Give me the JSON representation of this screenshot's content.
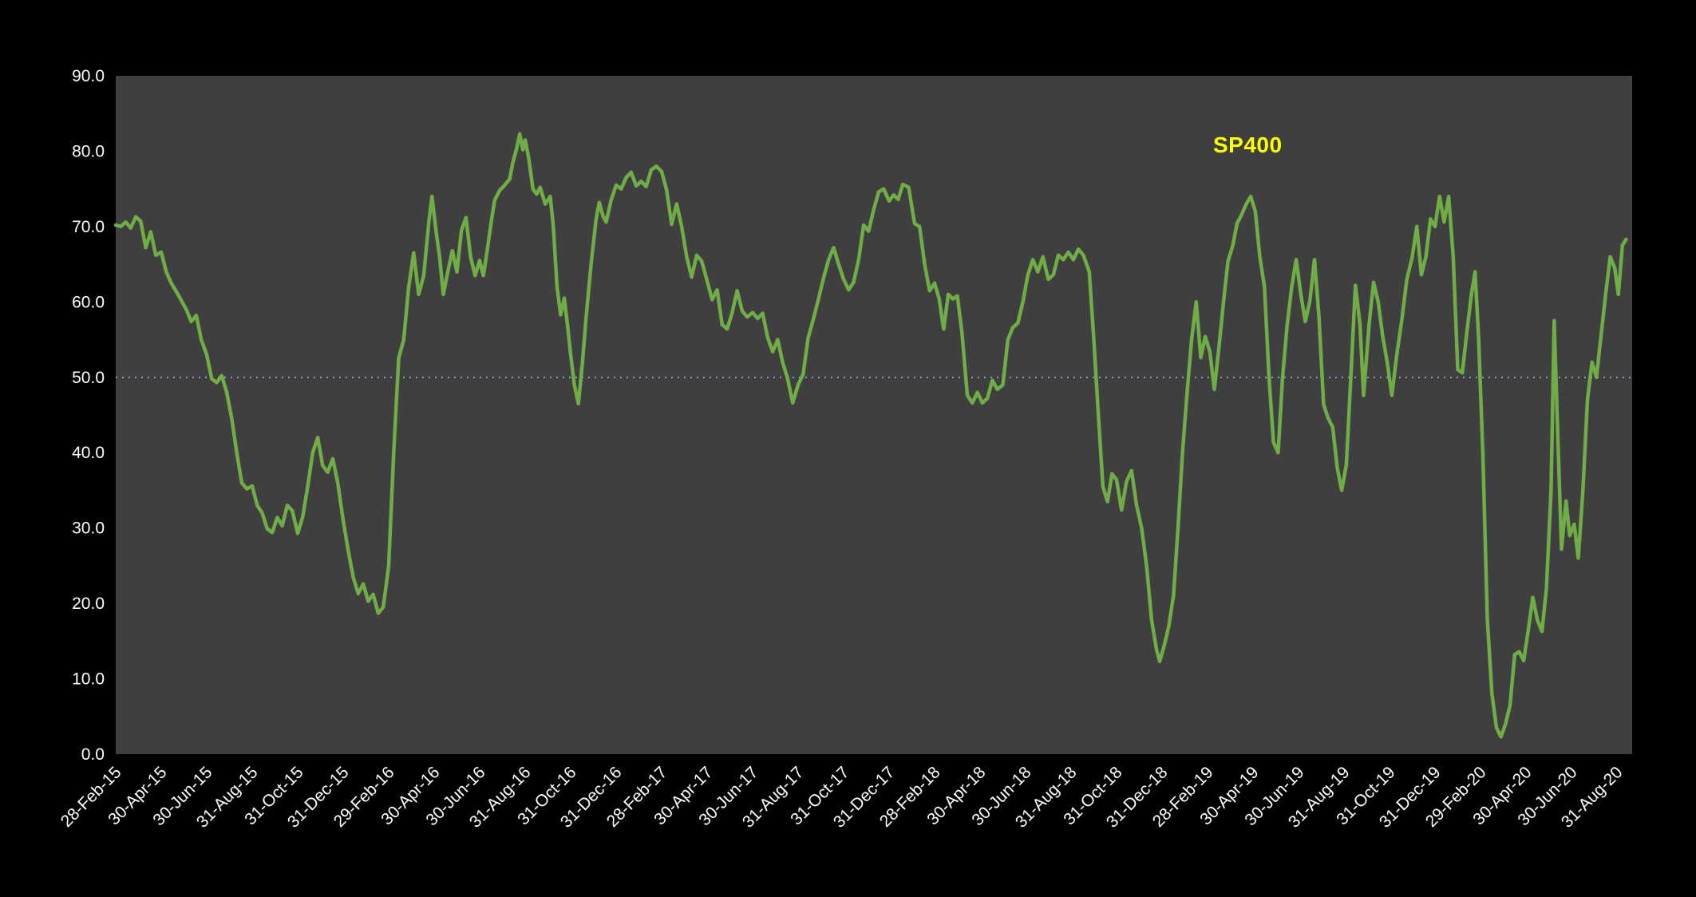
{
  "chart_data": {
    "type": "line",
    "series_label": "SP400",
    "background": "#000000",
    "plot_background": "#3F3F3F",
    "text_color": "#FFFFFF",
    "series_color": "#70AD47",
    "annotation": {
      "text": "SP400",
      "color": "#FFFF00"
    },
    "reference_line": {
      "value": 50,
      "color": "#8FAADC",
      "style": "dotted"
    },
    "ylim": [
      0,
      90
    ],
    "grid": "off-except-50-reference",
    "legend_position": "inline-annotation-top-right-area",
    "x_unit": "tick-index (one unit = 2 months between labeled ticks)",
    "y_ticks": {
      "values": [
        0,
        10,
        20,
        30,
        40,
        50,
        60,
        70,
        80,
        90
      ],
      "labels": [
        "0.0",
        "10.0",
        "20.0",
        "30.0",
        "40.0",
        "50.0",
        "60.0",
        "70.0",
        "80.0",
        "90.0"
      ]
    },
    "x_tick_labels": [
      "28-Feb-15",
      "30-Apr-15",
      "30-Jun-15",
      "31-Aug-15",
      "31-Oct-15",
      "31-Dec-15",
      "29-Feb-16",
      "30-Apr-16",
      "30-Jun-16",
      "31-Aug-16",
      "31-Oct-16",
      "31-Dec-16",
      "28-Feb-17",
      "30-Apr-17",
      "30-Jun-17",
      "31-Aug-17",
      "31-Oct-17",
      "31-Dec-17",
      "28-Feb-18",
      "30-Apr-18",
      "30-Jun-18",
      "31-Aug-18",
      "31-Oct-18",
      "31-Dec-18",
      "28-Feb-19",
      "30-Apr-19",
      "30-Jun-19",
      "31-Aug-19",
      "31-Oct-19",
      "31-Dec-19",
      "29-Feb-20",
      "30-Apr-20",
      "30-Jun-20",
      "31-Aug-20"
    ],
    "points": [
      [
        0.0,
        70.2
      ],
      [
        0.11,
        70.0
      ],
      [
        0.22,
        70.6
      ],
      [
        0.33,
        69.8
      ],
      [
        0.44,
        71.3
      ],
      [
        0.55,
        70.7
      ],
      [
        0.66,
        67.2
      ],
      [
        0.77,
        69.3
      ],
      [
        0.88,
        66.2
      ],
      [
        1.0,
        66.6
      ],
      [
        1.11,
        64.0
      ],
      [
        1.22,
        62.5
      ],
      [
        1.33,
        61.4
      ],
      [
        1.44,
        60.2
      ],
      [
        1.55,
        59.0
      ],
      [
        1.66,
        57.4
      ],
      [
        1.77,
        58.2
      ],
      [
        1.88,
        55.0
      ],
      [
        2.0,
        53.0
      ],
      [
        2.11,
        49.8
      ],
      [
        2.22,
        49.3
      ],
      [
        2.33,
        50.2
      ],
      [
        2.44,
        48.0
      ],
      [
        2.55,
        44.5
      ],
      [
        2.66,
        40.0
      ],
      [
        2.77,
        36.0
      ],
      [
        2.88,
        35.2
      ],
      [
        3.0,
        35.6
      ],
      [
        3.11,
        33.0
      ],
      [
        3.22,
        32.0
      ],
      [
        3.33,
        29.9
      ],
      [
        3.44,
        29.4
      ],
      [
        3.55,
        31.4
      ],
      [
        3.66,
        30.3
      ],
      [
        3.77,
        33.0
      ],
      [
        3.88,
        32.3
      ],
      [
        4.0,
        29.3
      ],
      [
        4.11,
        31.5
      ],
      [
        4.22,
        35.5
      ],
      [
        4.33,
        40.0
      ],
      [
        4.44,
        42.0
      ],
      [
        4.55,
        38.3
      ],
      [
        4.66,
        37.4
      ],
      [
        4.77,
        39.2
      ],
      [
        4.88,
        36.0
      ],
      [
        5.0,
        31.0
      ],
      [
        5.11,
        27.0
      ],
      [
        5.22,
        23.5
      ],
      [
        5.33,
        21.3
      ],
      [
        5.44,
        22.6
      ],
      [
        5.55,
        20.3
      ],
      [
        5.66,
        21.2
      ],
      [
        5.77,
        18.7
      ],
      [
        5.88,
        19.5
      ],
      [
        6.0,
        25.0
      ],
      [
        6.11,
        40.0
      ],
      [
        6.22,
        52.5
      ],
      [
        6.33,
        55.0
      ],
      [
        6.44,
        62.0
      ],
      [
        6.55,
        66.5
      ],
      [
        6.66,
        61.0
      ],
      [
        6.77,
        63.5
      ],
      [
        6.88,
        70.5
      ],
      [
        6.95,
        74.0
      ],
      [
        7.05,
        69.0
      ],
      [
        7.12,
        66.0
      ],
      [
        7.2,
        61.0
      ],
      [
        7.3,
        64.0
      ],
      [
        7.4,
        66.8
      ],
      [
        7.5,
        64.0
      ],
      [
        7.6,
        69.5
      ],
      [
        7.7,
        71.2
      ],
      [
        7.8,
        66.0
      ],
      [
        7.9,
        63.5
      ],
      [
        8.0,
        65.5
      ],
      [
        8.08,
        63.5
      ],
      [
        8.17,
        67.0
      ],
      [
        8.25,
        70.5
      ],
      [
        8.33,
        73.5
      ],
      [
        8.44,
        74.8
      ],
      [
        8.55,
        75.5
      ],
      [
        8.66,
        76.3
      ],
      [
        8.73,
        78.5
      ],
      [
        8.81,
        80.3
      ],
      [
        8.88,
        82.3
      ],
      [
        8.95,
        80.2
      ],
      [
        9.0,
        81.5
      ],
      [
        9.08,
        79.0
      ],
      [
        9.17,
        75.0
      ],
      [
        9.25,
        74.3
      ],
      [
        9.33,
        75.2
      ],
      [
        9.44,
        73.0
      ],
      [
        9.55,
        74.0
      ],
      [
        9.62,
        70.0
      ],
      [
        9.7,
        62.0
      ],
      [
        9.78,
        58.3
      ],
      [
        9.86,
        60.5
      ],
      [
        9.93,
        57.0
      ],
      [
        10.0,
        53.0
      ],
      [
        10.08,
        49.0
      ],
      [
        10.17,
        46.5
      ],
      [
        10.26,
        52.0
      ],
      [
        10.34,
        58.0
      ],
      [
        10.45,
        65.0
      ],
      [
        10.56,
        71.0
      ],
      [
        10.63,
        73.2
      ],
      [
        10.71,
        71.4
      ],
      [
        10.78,
        70.6
      ],
      [
        10.89,
        73.5
      ],
      [
        11.0,
        75.5
      ],
      [
        11.11,
        75.0
      ],
      [
        11.22,
        76.5
      ],
      [
        11.33,
        77.2
      ],
      [
        11.44,
        75.4
      ],
      [
        11.55,
        76.0
      ],
      [
        11.66,
        75.3
      ],
      [
        11.77,
        77.5
      ],
      [
        11.88,
        78.0
      ],
      [
        12.0,
        77.3
      ],
      [
        12.11,
        74.8
      ],
      [
        12.22,
        70.3
      ],
      [
        12.33,
        73.0
      ],
      [
        12.44,
        70.0
      ],
      [
        12.55,
        66.0
      ],
      [
        12.66,
        63.3
      ],
      [
        12.77,
        66.2
      ],
      [
        12.88,
        65.4
      ],
      [
        13.0,
        62.8
      ],
      [
        13.11,
        60.3
      ],
      [
        13.22,
        61.6
      ],
      [
        13.33,
        57.0
      ],
      [
        13.44,
        56.4
      ],
      [
        13.55,
        58.6
      ],
      [
        13.66,
        61.5
      ],
      [
        13.77,
        58.8
      ],
      [
        13.88,
        58.0
      ],
      [
        14.0,
        58.6
      ],
      [
        14.11,
        57.8
      ],
      [
        14.22,
        58.5
      ],
      [
        14.33,
        55.3
      ],
      [
        14.44,
        53.4
      ],
      [
        14.55,
        55.0
      ],
      [
        14.66,
        52.0
      ],
      [
        14.77,
        49.8
      ],
      [
        14.88,
        46.6
      ],
      [
        15.0,
        49.0
      ],
      [
        15.11,
        50.4
      ],
      [
        15.22,
        55.2
      ],
      [
        15.33,
        57.6
      ],
      [
        15.44,
        60.2
      ],
      [
        15.56,
        63.2
      ],
      [
        15.67,
        65.6
      ],
      [
        15.78,
        67.2
      ],
      [
        15.89,
        65.0
      ],
      [
        16.0,
        63.0
      ],
      [
        16.11,
        61.6
      ],
      [
        16.22,
        62.6
      ],
      [
        16.33,
        65.6
      ],
      [
        16.44,
        70.2
      ],
      [
        16.55,
        69.4
      ],
      [
        16.66,
        72.2
      ],
      [
        16.77,
        74.6
      ],
      [
        16.88,
        75.0
      ],
      [
        17.0,
        73.4
      ],
      [
        17.1,
        74.2
      ],
      [
        17.2,
        73.6
      ],
      [
        17.3,
        75.6
      ],
      [
        17.43,
        75.2
      ],
      [
        17.56,
        70.4
      ],
      [
        17.67,
        70.0
      ],
      [
        17.78,
        65.0
      ],
      [
        17.89,
        61.5
      ],
      [
        18.0,
        62.5
      ],
      [
        18.1,
        60.4
      ],
      [
        18.2,
        56.4
      ],
      [
        18.3,
        61.0
      ],
      [
        18.4,
        60.4
      ],
      [
        18.5,
        60.8
      ],
      [
        18.6,
        56.0
      ],
      [
        18.72,
        47.6
      ],
      [
        18.83,
        46.6
      ],
      [
        18.94,
        48.0
      ],
      [
        19.05,
        46.6
      ],
      [
        19.16,
        47.2
      ],
      [
        19.27,
        49.6
      ],
      [
        19.38,
        48.4
      ],
      [
        19.5,
        49.0
      ],
      [
        19.61,
        55.0
      ],
      [
        19.72,
        56.6
      ],
      [
        19.83,
        57.2
      ],
      [
        19.94,
        60.0
      ],
      [
        20.05,
        63.6
      ],
      [
        20.16,
        65.6
      ],
      [
        20.27,
        64.0
      ],
      [
        20.38,
        66.0
      ],
      [
        20.5,
        63.0
      ],
      [
        20.61,
        63.6
      ],
      [
        20.72,
        66.2
      ],
      [
        20.83,
        65.6
      ],
      [
        20.94,
        66.6
      ],
      [
        21.05,
        65.6
      ],
      [
        21.16,
        67.0
      ],
      [
        21.27,
        66.2
      ],
      [
        21.4,
        64.0
      ],
      [
        21.5,
        55.0
      ],
      [
        21.6,
        45.0
      ],
      [
        21.7,
        35.5
      ],
      [
        21.8,
        33.5
      ],
      [
        21.9,
        37.2
      ],
      [
        22.0,
        36.4
      ],
      [
        22.11,
        32.4
      ],
      [
        22.22,
        36.2
      ],
      [
        22.33,
        37.6
      ],
      [
        22.44,
        33.0
      ],
      [
        22.55,
        30.0
      ],
      [
        22.66,
        25.0
      ],
      [
        22.77,
        17.8
      ],
      [
        22.88,
        13.8
      ],
      [
        22.95,
        12.3
      ],
      [
        23.05,
        14.5
      ],
      [
        23.15,
        17.0
      ],
      [
        23.25,
        21.0
      ],
      [
        23.35,
        30.0
      ],
      [
        23.45,
        40.0
      ],
      [
        23.55,
        48.0
      ],
      [
        23.65,
        55.0
      ],
      [
        23.75,
        60.0
      ],
      [
        23.85,
        52.6
      ],
      [
        23.95,
        55.4
      ],
      [
        24.05,
        53.4
      ],
      [
        24.15,
        48.4
      ],
      [
        24.25,
        54.0
      ],
      [
        24.35,
        60.0
      ],
      [
        24.45,
        65.4
      ],
      [
        24.55,
        67.4
      ],
      [
        24.65,
        70.4
      ],
      [
        24.75,
        71.6
      ],
      [
        24.85,
        73.0
      ],
      [
        24.95,
        74.0
      ],
      [
        25.05,
        72.0
      ],
      [
        25.15,
        66.0
      ],
      [
        25.25,
        62.0
      ],
      [
        25.35,
        50.0
      ],
      [
        25.45,
        41.4
      ],
      [
        25.55,
        40.0
      ],
      [
        25.65,
        50.0
      ],
      [
        25.75,
        57.0
      ],
      [
        25.85,
        62.0
      ],
      [
        25.95,
        65.6
      ],
      [
        26.05,
        61.0
      ],
      [
        26.15,
        57.4
      ],
      [
        26.25,
        60.2
      ],
      [
        26.35,
        65.6
      ],
      [
        26.45,
        58.0
      ],
      [
        26.55,
        46.4
      ],
      [
        26.65,
        44.6
      ],
      [
        26.75,
        43.4
      ],
      [
        26.85,
        38.0
      ],
      [
        26.95,
        35.0
      ],
      [
        27.05,
        38.4
      ],
      [
        27.15,
        50.0
      ],
      [
        27.25,
        62.2
      ],
      [
        27.35,
        57.0
      ],
      [
        27.43,
        47.6
      ],
      [
        27.55,
        57.0
      ],
      [
        27.65,
        62.6
      ],
      [
        27.75,
        60.0
      ],
      [
        27.85,
        55.4
      ],
      [
        27.95,
        52.0
      ],
      [
        28.05,
        47.6
      ],
      [
        28.16,
        53.0
      ],
      [
        28.27,
        57.6
      ],
      [
        28.38,
        63.0
      ],
      [
        28.5,
        66.0
      ],
      [
        28.6,
        70.0
      ],
      [
        28.7,
        63.6
      ],
      [
        28.8,
        66.0
      ],
      [
        28.9,
        71.0
      ],
      [
        29.0,
        70.0
      ],
      [
        29.1,
        74.0
      ],
      [
        29.2,
        70.6
      ],
      [
        29.3,
        74.0
      ],
      [
        29.4,
        66.0
      ],
      [
        29.5,
        51.0
      ],
      [
        29.6,
        50.6
      ],
      [
        29.7,
        56.0
      ],
      [
        29.8,
        61.0
      ],
      [
        29.88,
        64.0
      ],
      [
        29.96,
        55.0
      ],
      [
        30.05,
        40.0
      ],
      [
        30.15,
        18.0
      ],
      [
        30.25,
        8.0
      ],
      [
        30.35,
        3.5
      ],
      [
        30.45,
        2.3
      ],
      [
        30.55,
        4.0
      ],
      [
        30.65,
        6.5
      ],
      [
        30.75,
        13.2
      ],
      [
        30.85,
        13.6
      ],
      [
        30.95,
        12.4
      ],
      [
        31.05,
        16.5
      ],
      [
        31.15,
        20.8
      ],
      [
        31.25,
        17.8
      ],
      [
        31.35,
        16.3
      ],
      [
        31.45,
        22.0
      ],
      [
        31.55,
        35.0
      ],
      [
        31.62,
        57.5
      ],
      [
        31.7,
        42.0
      ],
      [
        31.78,
        27.2
      ],
      [
        31.88,
        33.6
      ],
      [
        31.96,
        29.0
      ],
      [
        32.06,
        30.5
      ],
      [
        32.15,
        26.0
      ],
      [
        32.25,
        35.0
      ],
      [
        32.35,
        47.0
      ],
      [
        32.45,
        52.0
      ],
      [
        32.55,
        50.0
      ],
      [
        32.65,
        55.5
      ],
      [
        32.75,
        61.0
      ],
      [
        32.85,
        66.0
      ],
      [
        32.95,
        64.5
      ],
      [
        33.03,
        61.0
      ],
      [
        33.12,
        67.5
      ],
      [
        33.2,
        68.3
      ]
    ]
  }
}
